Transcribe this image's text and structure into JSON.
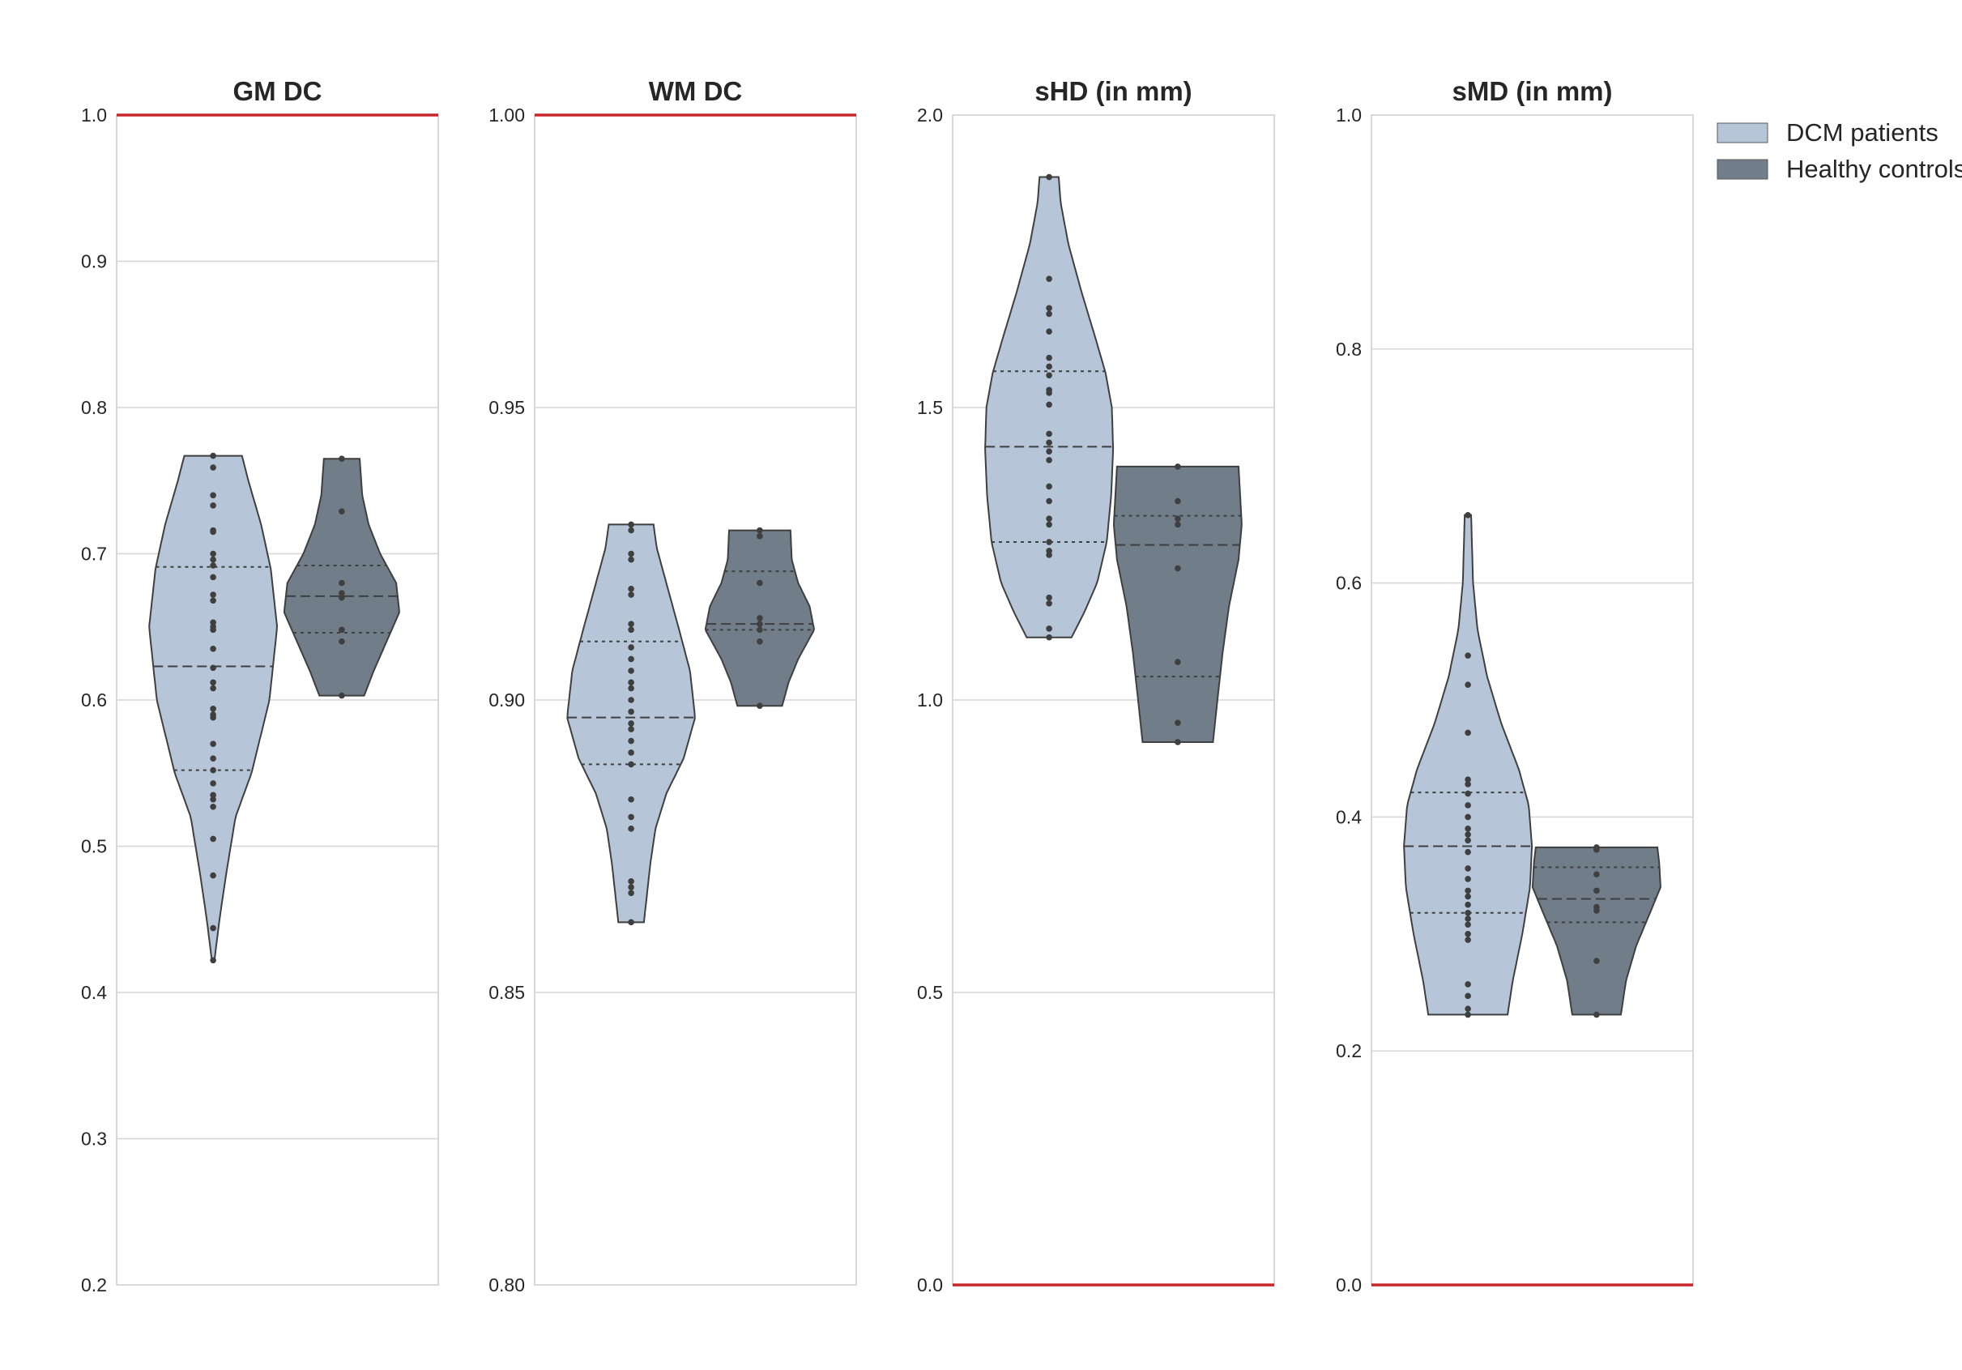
{
  "colors": {
    "patients_fill": "#b7c5d9",
    "controls_fill": "#717d89",
    "outline": "#3f3f3f",
    "point": "#3f3f3f",
    "grid": "#d6d6d6",
    "frame": "#cccccc",
    "reference_line": "#c8262a"
  },
  "legend": {
    "position": "top-right, outside plot",
    "items": [
      {
        "label": "DCM patients",
        "color": "#b7c5d9"
      },
      {
        "label": "Healthy controls",
        "color": "#717d89"
      }
    ]
  },
  "chart_data": [
    {
      "type": "violin",
      "title": "GM DC",
      "ylim": [
        0.2,
        1.0
      ],
      "yticks": [
        "0.2",
        "0.3",
        "0.4",
        "0.5",
        "0.6",
        "0.7",
        "0.8",
        "0.9",
        "1.0"
      ],
      "grid": true,
      "reference_line": 1.0,
      "series": [
        {
          "name": "DCM patients",
          "min": 0.422,
          "max": 0.767,
          "q1": 0.552,
          "median": 0.623,
          "q3": 0.691,
          "density": [
            [
              0.422,
              0.02
            ],
            [
              0.45,
              0.1
            ],
            [
              0.48,
              0.2
            ],
            [
              0.52,
              0.35
            ],
            [
              0.55,
              0.6
            ],
            [
              0.6,
              0.88
            ],
            [
              0.65,
              1.0
            ],
            [
              0.69,
              0.9
            ],
            [
              0.72,
              0.75
            ],
            [
              0.75,
              0.55
            ],
            [
              0.767,
              0.45
            ]
          ],
          "points": [
            0.422,
            0.444,
            0.48,
            0.505,
            0.527,
            0.532,
            0.535,
            0.543,
            0.552,
            0.56,
            0.57,
            0.588,
            0.59,
            0.594,
            0.608,
            0.612,
            0.622,
            0.635,
            0.648,
            0.65,
            0.653,
            0.668,
            0.672,
            0.684,
            0.692,
            0.696,
            0.7,
            0.715,
            0.716,
            0.733,
            0.74,
            0.759,
            0.767
          ]
        },
        {
          "name": "Healthy controls",
          "min": 0.603,
          "max": 0.765,
          "q1": 0.646,
          "median": 0.671,
          "q3": 0.692,
          "density": [
            [
              0.603,
              0.35
            ],
            [
              0.62,
              0.5
            ],
            [
              0.64,
              0.7
            ],
            [
              0.66,
              0.9
            ],
            [
              0.68,
              0.85
            ],
            [
              0.7,
              0.6
            ],
            [
              0.72,
              0.42
            ],
            [
              0.74,
              0.32
            ],
            [
              0.765,
              0.28
            ]
          ],
          "points": [
            0.603,
            0.64,
            0.648,
            0.67,
            0.673,
            0.68,
            0.729,
            0.765
          ]
        }
      ]
    },
    {
      "type": "violin",
      "title": "WM DC",
      "ylim": [
        0.8,
        1.0
      ],
      "yticks": [
        "0.80",
        "0.85",
        "0.90",
        "0.95",
        "1.00"
      ],
      "grid": true,
      "reference_line": 1.0,
      "series": [
        {
          "name": "DCM patients",
          "min": 0.862,
          "max": 0.93,
          "q1": 0.889,
          "median": 0.897,
          "q3": 0.91,
          "density": [
            [
              0.862,
              0.2
            ],
            [
              0.866,
              0.24
            ],
            [
              0.872,
              0.3
            ],
            [
              0.878,
              0.38
            ],
            [
              0.884,
              0.55
            ],
            [
              0.89,
              0.82
            ],
            [
              0.897,
              1.0
            ],
            [
              0.905,
              0.92
            ],
            [
              0.912,
              0.75
            ],
            [
              0.92,
              0.55
            ],
            [
              0.926,
              0.4
            ],
            [
              0.93,
              0.35
            ]
          ],
          "points": [
            0.862,
            0.867,
            0.868,
            0.869,
            0.878,
            0.88,
            0.883,
            0.889,
            0.891,
            0.893,
            0.895,
            0.896,
            0.898,
            0.9,
            0.902,
            0.903,
            0.905,
            0.907,
            0.909,
            0.912,
            0.913,
            0.918,
            0.919,
            0.924,
            0.925,
            0.929,
            0.93
          ]
        },
        {
          "name": "Healthy controls",
          "min": 0.899,
          "max": 0.929,
          "q1": 0.912,
          "median": 0.913,
          "q3": 0.922,
          "density": [
            [
              0.899,
              0.35
            ],
            [
              0.903,
              0.45
            ],
            [
              0.907,
              0.6
            ],
            [
              0.912,
              0.85
            ],
            [
              0.916,
              0.78
            ],
            [
              0.92,
              0.6
            ],
            [
              0.924,
              0.5
            ],
            [
              0.929,
              0.48
            ]
          ],
          "points": [
            0.899,
            0.91,
            0.912,
            0.913,
            0.914,
            0.92,
            0.928,
            0.929
          ]
        }
      ]
    },
    {
      "type": "violin",
      "title": "sHD (in mm)",
      "ylim": [
        0.0,
        2.0
      ],
      "yticks": [
        "0.0",
        "0.5",
        "1.0",
        "1.5",
        "2.0"
      ],
      "grid": true,
      "reference_line": 0.0,
      "series": [
        {
          "name": "DCM patients",
          "min": 1.107,
          "max": 1.894,
          "q1": 1.27,
          "median": 1.433,
          "q3": 1.562,
          "density": [
            [
              1.107,
              0.35
            ],
            [
              1.15,
              0.55
            ],
            [
              1.2,
              0.75
            ],
            [
              1.27,
              0.9
            ],
            [
              1.35,
              0.97
            ],
            [
              1.43,
              1.0
            ],
            [
              1.5,
              0.98
            ],
            [
              1.56,
              0.88
            ],
            [
              1.62,
              0.72
            ],
            [
              1.7,
              0.5
            ],
            [
              1.78,
              0.3
            ],
            [
              1.85,
              0.18
            ],
            [
              1.894,
              0.15
            ]
          ],
          "points": [
            1.107,
            1.122,
            1.165,
            1.175,
            1.248,
            1.255,
            1.27,
            1.3,
            1.31,
            1.34,
            1.365,
            1.41,
            1.425,
            1.44,
            1.455,
            1.505,
            1.525,
            1.53,
            1.555,
            1.57,
            1.585,
            1.63,
            1.66,
            1.67,
            1.72,
            1.894
          ]
        },
        {
          "name": "Healthy controls",
          "min": 0.928,
          "max": 1.399,
          "q1": 1.04,
          "median": 1.265,
          "q3": 1.315,
          "density": [
            [
              0.928,
              0.55
            ],
            [
              1.0,
              0.62
            ],
            [
              1.08,
              0.7
            ],
            [
              1.16,
              0.8
            ],
            [
              1.24,
              0.95
            ],
            [
              1.3,
              1.0
            ],
            [
              1.36,
              0.97
            ],
            [
              1.399,
              0.95
            ]
          ],
          "points": [
            0.928,
            0.961,
            1.065,
            1.225,
            1.3,
            1.31,
            1.34,
            1.399
          ]
        }
      ]
    },
    {
      "type": "violin",
      "title": "sMD (in mm)",
      "ylim": [
        0.0,
        1.0
      ],
      "yticks": [
        "0.0",
        "0.2",
        "0.4",
        "0.6",
        "0.8",
        "1.0"
      ],
      "grid": true,
      "reference_line": 0.0,
      "series": [
        {
          "name": "DCM patients",
          "min": 0.231,
          "max": 0.658,
          "q1": 0.318,
          "median": 0.375,
          "q3": 0.421,
          "density": [
            [
              0.231,
              0.62
            ],
            [
              0.26,
              0.7
            ],
            [
              0.3,
              0.85
            ],
            [
              0.34,
              0.97
            ],
            [
              0.375,
              1.0
            ],
            [
              0.41,
              0.95
            ],
            [
              0.44,
              0.8
            ],
            [
              0.48,
              0.52
            ],
            [
              0.52,
              0.3
            ],
            [
              0.56,
              0.15
            ],
            [
              0.6,
              0.08
            ],
            [
              0.658,
              0.05
            ]
          ],
          "points": [
            0.231,
            0.236,
            0.247,
            0.257,
            0.295,
            0.3,
            0.308,
            0.313,
            0.318,
            0.325,
            0.332,
            0.337,
            0.347,
            0.356,
            0.37,
            0.38,
            0.385,
            0.39,
            0.4,
            0.41,
            0.42,
            0.428,
            0.432,
            0.472,
            0.513,
            0.538,
            0.658
          ]
        },
        {
          "name": "Healthy controls",
          "min": 0.231,
          "max": 0.374,
          "q1": 0.31,
          "median": 0.33,
          "q3": 0.357,
          "density": [
            [
              0.231,
              0.38
            ],
            [
              0.26,
              0.46
            ],
            [
              0.29,
              0.62
            ],
            [
              0.32,
              0.85
            ],
            [
              0.34,
              1.0
            ],
            [
              0.36,
              0.98
            ],
            [
              0.374,
              0.95
            ]
          ],
          "points": [
            0.231,
            0.277,
            0.32,
            0.323,
            0.337,
            0.351,
            0.372,
            0.374
          ]
        }
      ]
    }
  ]
}
